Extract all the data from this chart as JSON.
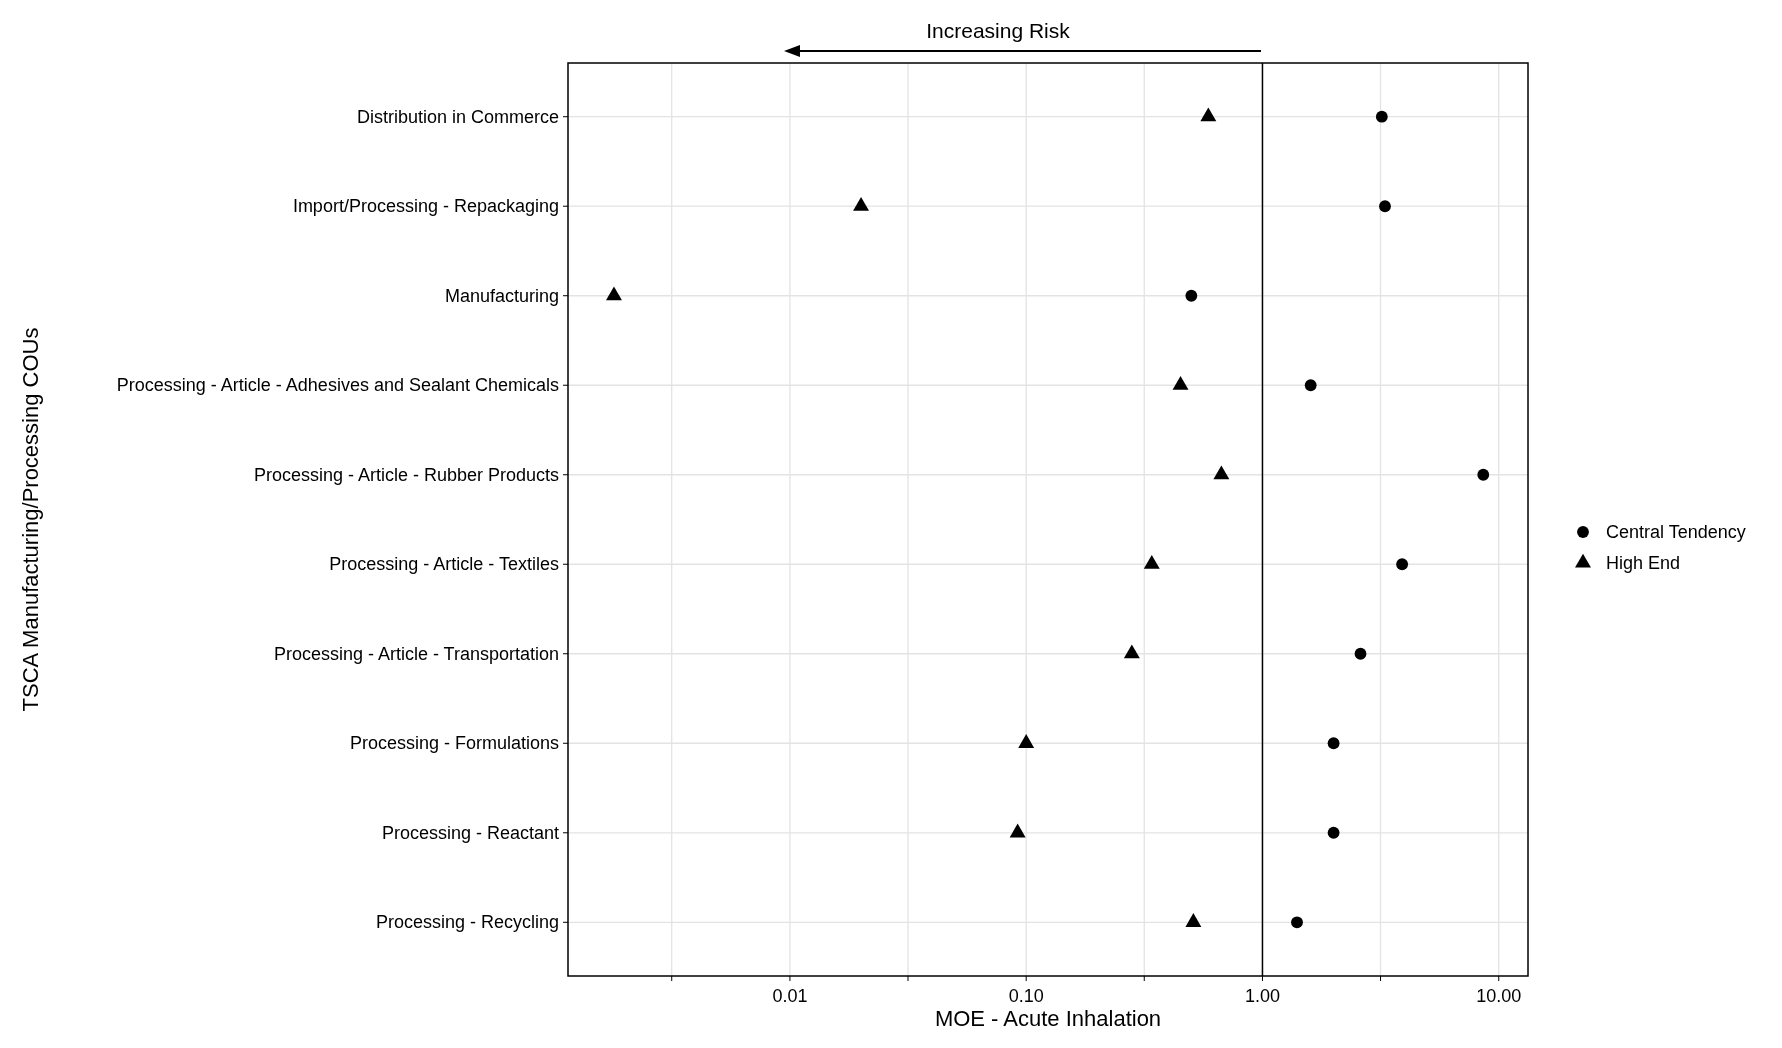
{
  "chart_data": {
    "type": "scatter",
    "xlabel": "MOE - Acute Inhalation",
    "ylabel": "TSCA Manufacturing/Processing COUs",
    "categories": [
      "Distribution in Commerce",
      "Import/Processing - Repackaging",
      "Manufacturing",
      "Processing - Article - Adhesives and Sealant Chemicals",
      "Processing - Article - Rubber Products",
      "Processing - Article - Textiles",
      "Processing - Article - Transportation",
      "Processing - Formulations",
      "Processing - Reactant",
      "Processing - Recycling"
    ],
    "series": [
      {
        "name": "Central Tendency",
        "color": "#000000",
        "marker": "circle",
        "values": [
          3.2,
          3.3,
          0.5,
          1.6,
          8.6,
          3.9,
          2.6,
          2.0,
          2.0,
          1.4
        ]
      },
      {
        "name": "High End",
        "color": "#000000",
        "marker": "triangle",
        "values": [
          0.59,
          0.02,
          0.0018,
          0.45,
          0.67,
          0.34,
          0.28,
          0.1,
          0.092,
          0.51
        ]
      }
    ],
    "orientation": "horizontal",
    "log": "x",
    "xlim": [
      0.00115,
      13.3
    ],
    "xticks": [
      {
        "value": 0.00316,
        "label": null
      },
      {
        "value": 0.01,
        "label": "0.01"
      },
      {
        "value": 0.0316,
        "label": null
      },
      {
        "value": 0.1,
        "label": "0.10"
      },
      {
        "value": 0.316,
        "label": null
      },
      {
        "value": 1,
        "label": "1.00"
      },
      {
        "value": 3.16,
        "label": null
      },
      {
        "value": 10,
        "label": "10.00"
      }
    ],
    "ref_lines": [
      {
        "axis": "x",
        "value": 1,
        "color": "#000000",
        "line_style": "solid"
      }
    ],
    "annotations": [
      "Increasing Risk"
    ],
    "grid": true,
    "legend": "right"
  }
}
